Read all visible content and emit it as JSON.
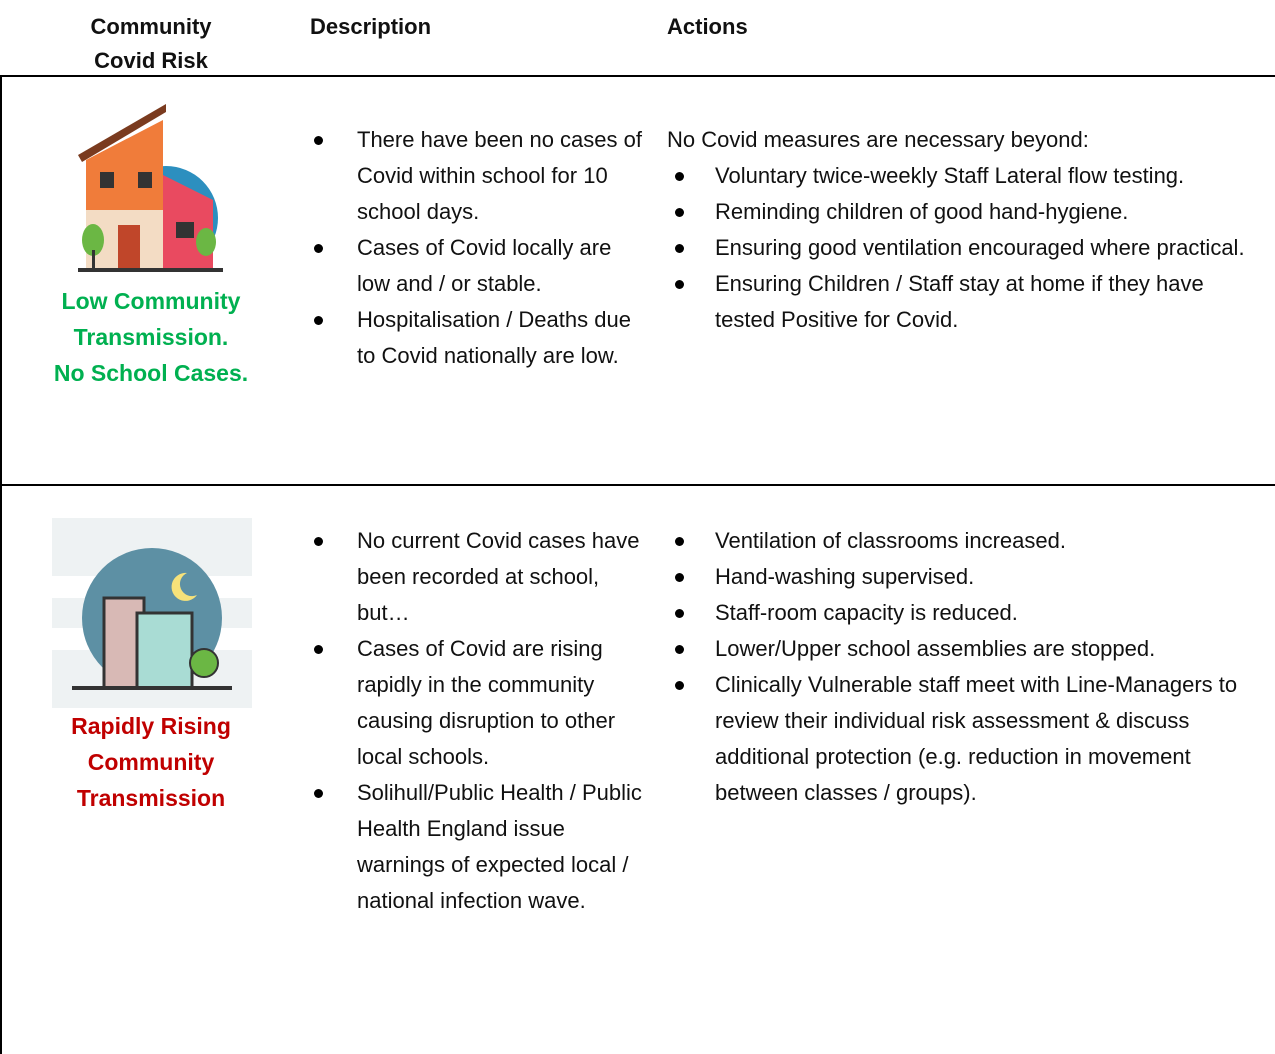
{
  "header": {
    "risk_lines": [
      "Community",
      "Covid Risk"
    ],
    "description": "Description",
    "actions": "Actions"
  },
  "rows": [
    {
      "risk_lines": [
        "Low Community",
        "Transmission.",
        "No School Cases."
      ],
      "risk_color": "#00b050",
      "description": [
        "There have been no cases of Covid within school for 10 school days.",
        "Cases of Covid locally are low and / or stable.",
        "Hospitalisation / Deaths due to Covid nationally are low."
      ],
      "actions_intro": "No Covid measures are necessary beyond:",
      "actions": [
        "Voluntary twice-weekly Staff Lateral flow testing.",
        "Reminding children of good hand-hygiene.",
        "Ensuring good ventilation encouraged where practical.",
        "Ensuring Children / Staff stay at home if they have tested Positive for Covid."
      ]
    },
    {
      "risk_lines": [
        "Rapidly Rising",
        "Community",
        "Transmission"
      ],
      "risk_color": "#c00000",
      "description": [
        "No current Covid cases have been recorded at school, but…",
        "Cases of Covid are rising rapidly in the community causing disruption to other local schools.",
        "Solihull/Public Health / Public Health England issue warnings of expected local / national infection wave."
      ],
      "actions": [
        "Ventilation of classrooms increased.",
        "Hand-washing supervised.",
        "Staff-room capacity is reduced.",
        "Lower/Upper school assemblies are stopped.",
        "Clinically Vulnerable staff meet with Line-Managers to review their individual risk assessment & discuss additional protection (e.g. reduction in movement between classes / groups)."
      ]
    }
  ]
}
